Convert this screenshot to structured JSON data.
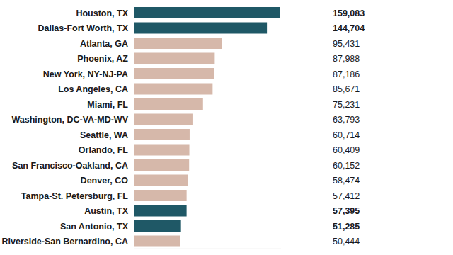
{
  "chart_data": {
    "type": "bar",
    "orientation": "horizontal",
    "data_labels": true,
    "tick_labels": "y",
    "grid": false,
    "categories": [
      "Houston, TX",
      "Dallas-Fort Worth, TX",
      "Atlanta, GA",
      "Phoenix, AZ",
      "New York, NY-NJ-PA",
      "Los Angeles, CA",
      "Miami, FL",
      "Washington, DC-VA-MD-WV",
      "Seattle, WA",
      "Orlando, FL",
      "San Francisco-Oakland, CA",
      "Denver, CO",
      "Tampa-St. Petersburg, FL",
      "Austin, TX",
      "San Antonio, TX",
      "Riverside-San Bernardino, CA"
    ],
    "values": [
      159083,
      144704,
      95431,
      87988,
      87186,
      85671,
      75231,
      63793,
      60714,
      60409,
      60152,
      58474,
      57412,
      57395,
      51285,
      50444
    ],
    "value_labels": [
      "159,083",
      "144,704",
      "95,431",
      "87,988",
      "87,186",
      "85,671",
      "75,231",
      "63,793",
      "60,714",
      "60,409",
      "60,152",
      "58,474",
      "57,412",
      "57,395",
      "51,285",
      "50,444"
    ],
    "colors": [
      "#1f5866",
      "#1f5866",
      "#d6b8aa",
      "#d6b8aa",
      "#d6b8aa",
      "#d6b8aa",
      "#d6b8aa",
      "#d6b8aa",
      "#d6b8aa",
      "#d6b8aa",
      "#d6b8aa",
      "#d6b8aa",
      "#d6b8aa",
      "#1f5866",
      "#1f5866",
      "#d6b8aa"
    ],
    "xlim": [
      0,
      160000
    ]
  }
}
